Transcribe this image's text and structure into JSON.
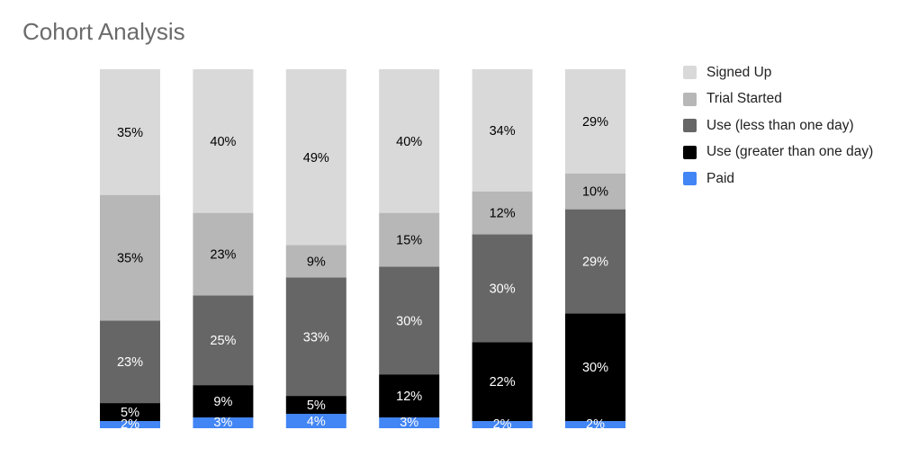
{
  "chart_data": {
    "type": "bar",
    "stacked": true,
    "stack_mode": "percent",
    "title": "Cohort Analysis",
    "xlabel": "",
    "ylabel": "",
    "ylim": [
      0,
      100
    ],
    "grid": false,
    "legend_position": "right",
    "categories": [
      "",
      "",
      "",
      "",
      "",
      ""
    ],
    "series": [
      {
        "name": "Signed Up",
        "color": "#d9d9d9",
        "label_color": "#000000",
        "values": [
          35,
          40,
          49,
          40,
          34,
          29
        ],
        "labels": [
          "35%",
          "40%",
          "49%",
          "40%",
          "34%",
          "29%"
        ]
      },
      {
        "name": "Trial Started",
        "color": "#b7b7b7",
        "label_color": "#000000",
        "values": [
          35,
          23,
          9,
          15,
          12,
          10
        ],
        "labels": [
          "35%",
          "23%",
          "9%",
          "15%",
          "12%",
          "10%"
        ]
      },
      {
        "name": "Use (less than one day)",
        "color": "#666666",
        "label_color": "#ffffff",
        "values": [
          23,
          25,
          33,
          30,
          30,
          29
        ],
        "labels": [
          "23%",
          "25%",
          "33%",
          "30%",
          "30%",
          "29%"
        ]
      },
      {
        "name": "Use (greater than one day)",
        "color": "#000000",
        "label_color": "#ffffff",
        "values": [
          5,
          9,
          5,
          12,
          22,
          30
        ],
        "labels": [
          "5%",
          "9%",
          "5%",
          "12%",
          "22%",
          "30%"
        ]
      },
      {
        "name": "Paid",
        "color": "#4285f4",
        "label_color": "#ffffff",
        "values": [
          2,
          3,
          4,
          3,
          2,
          2
        ],
        "labels": [
          "2%",
          "3%",
          "4%",
          "3%",
          "2%",
          "2%"
        ]
      }
    ]
  }
}
